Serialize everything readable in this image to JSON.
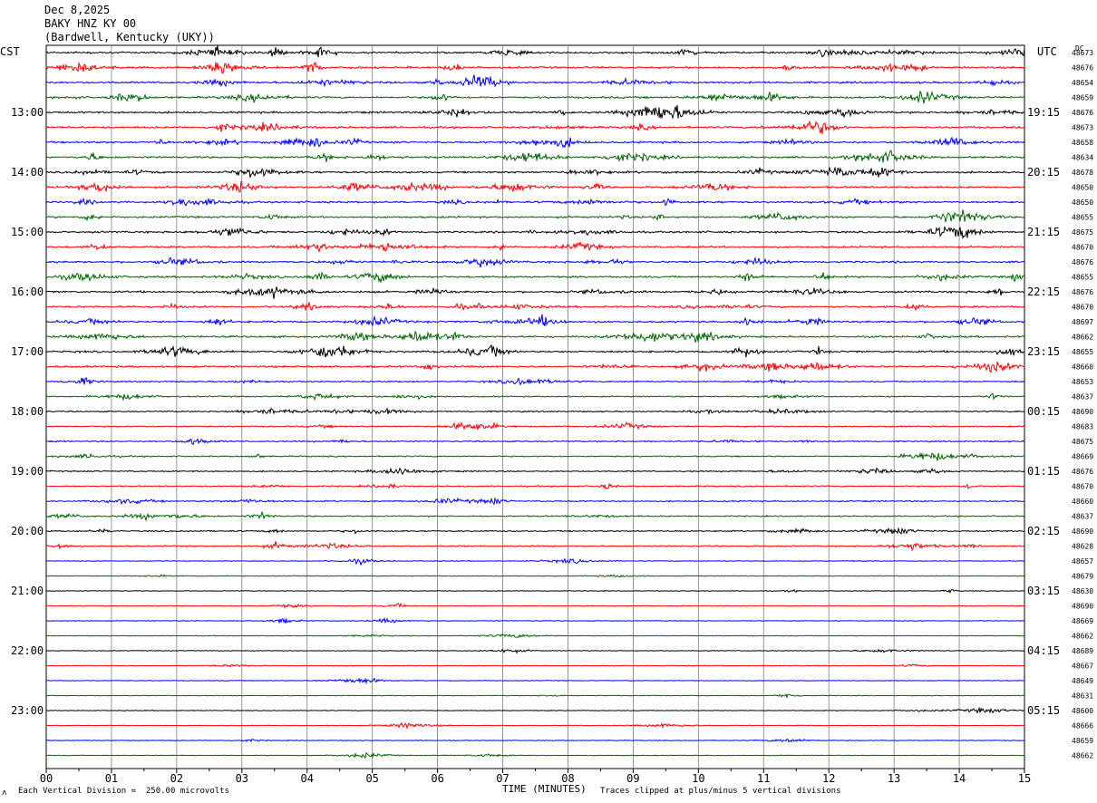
{
  "header": {
    "date": "Dec 8,2025",
    "station": "BAKY HNZ KY 00",
    "location": "(Bardwell, Kentucky (UKY))"
  },
  "left_zone": "CST",
  "right_zone": "UTC",
  "dc_label": "DC",
  "footer": {
    "scale_note": "Each Vertical Division =  250.00 microvolts",
    "clip_note": "Traces clipped at plus/minus 5 vertical divisions",
    "corner_mark": "ʌ"
  },
  "chart_data": {
    "type": "line",
    "title": "",
    "xlabel": "TIME (MINUTES)",
    "ylabel": "",
    "xlim": [
      0,
      15
    ],
    "x_ticks": [
      "00",
      "01",
      "02",
      "03",
      "04",
      "05",
      "06",
      "07",
      "08",
      "09",
      "10",
      "11",
      "12",
      "13",
      "14",
      "15"
    ],
    "row_count": 48,
    "minutes_per_row": 15,
    "series_colors": [
      "#000000",
      "#ff0000",
      "#0000ff",
      "#006600"
    ],
    "left_hour_labels": [
      {
        "row": 4,
        "text": "13:00"
      },
      {
        "row": 8,
        "text": "14:00"
      },
      {
        "row": 12,
        "text": "15:00"
      },
      {
        "row": 16,
        "text": "16:00"
      },
      {
        "row": 20,
        "text": "17:00"
      },
      {
        "row": 24,
        "text": "18:00"
      },
      {
        "row": 28,
        "text": "19:00"
      },
      {
        "row": 32,
        "text": "20:00"
      },
      {
        "row": 36,
        "text": "21:00"
      },
      {
        "row": 40,
        "text": "22:00"
      },
      {
        "row": 44,
        "text": "23:00"
      }
    ],
    "right_hour_labels": [
      {
        "row": 4,
        "text": "19:15"
      },
      {
        "row": 8,
        "text": "20:15"
      },
      {
        "row": 12,
        "text": "21:15"
      },
      {
        "row": 16,
        "text": "22:15"
      },
      {
        "row": 20,
        "text": "23:15"
      },
      {
        "row": 24,
        "text": "00:15"
      },
      {
        "row": 28,
        "text": "01:15"
      },
      {
        "row": 32,
        "text": "02:15"
      },
      {
        "row": 36,
        "text": "03:15"
      },
      {
        "row": 40,
        "text": "04:15"
      },
      {
        "row": 44,
        "text": "05:15"
      }
    ],
    "dc_offsets": [
      "48673",
      "48676",
      "48654",
      "48659",
      "48676",
      "48673",
      "48658",
      "48634",
      "48678",
      "48650",
      "48650",
      "48655",
      "48675",
      "48670",
      "48676",
      "48655",
      "48676",
      "48670",
      "48697",
      "48662",
      "48655",
      "48660",
      "48653",
      "48637",
      "48690",
      "48683",
      "48675",
      "48669",
      "48676",
      "48670",
      "48660",
      "48637",
      "48690",
      "48628",
      "48657",
      "48679",
      "48630",
      "48690",
      "48669",
      "48662",
      "48689",
      "48667",
      "48649",
      "48631",
      "48600",
      "48666",
      "48659",
      "48662"
    ],
    "activity_level": [
      "high",
      "high",
      "high",
      "high",
      "high",
      "high",
      "high",
      "high",
      "high",
      "high",
      "high",
      "high",
      "high",
      "high",
      "high",
      "high",
      "high",
      "high",
      "high",
      "high",
      "high",
      "high",
      "moderate",
      "moderate",
      "moderate",
      "moderate",
      "moderate",
      "moderate",
      "moderate",
      "moderate",
      "moderate",
      "moderate",
      "moderate",
      "moderate",
      "low",
      "low",
      "low",
      "low",
      "low",
      "low",
      "low",
      "low",
      "low",
      "low",
      "low",
      "low",
      "low",
      "low"
    ],
    "y_scale": "250.00 microvolts per division",
    "clip_level": "plus/minus 5 vertical divisions",
    "grid": true
  }
}
